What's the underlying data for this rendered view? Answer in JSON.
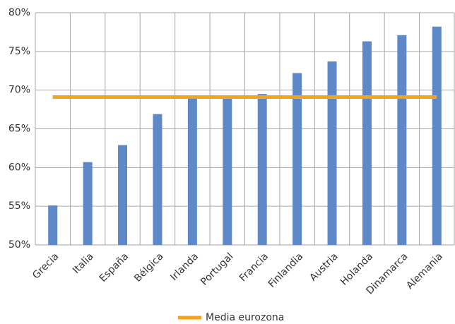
{
  "chart_data": {
    "type": "bar",
    "categories": [
      "Grecia",
      "Italia",
      "España",
      "Bélgica",
      "Irlanda",
      "Portugal",
      "Francia",
      "Finlandia",
      "Austria",
      "Holanda",
      "Dinamarca",
      "Alemania"
    ],
    "series": [
      {
        "type": "bar",
        "color": "#5f88c8",
        "values": [
          55.1,
          60.7,
          62.9,
          66.9,
          69.1,
          69.0,
          69.5,
          72.2,
          73.7,
          76.3,
          77.1,
          78.2
        ]
      },
      {
        "type": "line",
        "name": "Media eurozona",
        "color": "#f5a31a",
        "values": [
          69.1,
          69.1,
          69.1,
          69.1,
          69.1,
          69.1,
          69.1,
          69.1,
          69.1,
          69.1,
          69.1,
          69.1
        ]
      }
    ],
    "ylim": [
      50,
      80
    ],
    "yticks": [
      {
        "value": 50,
        "label": "50%"
      },
      {
        "value": 55,
        "label": "55%"
      },
      {
        "value": 60,
        "label": "60%"
      },
      {
        "value": 65,
        "label": "65%"
      },
      {
        "value": 70,
        "label": "70%"
      },
      {
        "value": 75,
        "label": "75%"
      },
      {
        "value": 80,
        "label": "80%"
      }
    ],
    "grid": true,
    "legend": "bottom"
  }
}
